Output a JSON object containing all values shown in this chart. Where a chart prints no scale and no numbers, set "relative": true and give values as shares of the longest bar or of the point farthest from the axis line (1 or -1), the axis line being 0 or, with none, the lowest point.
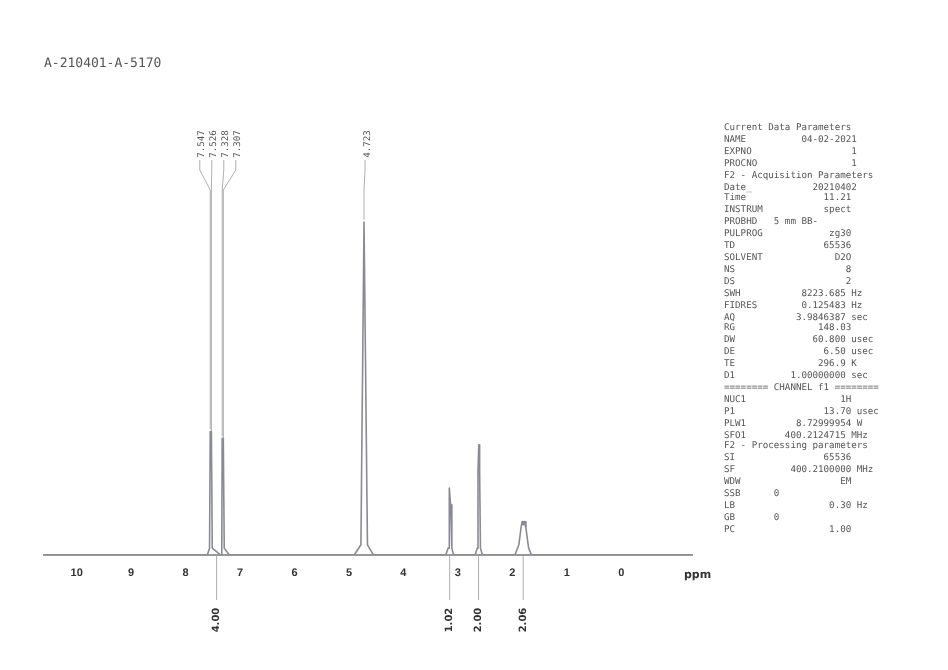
{
  "chart_data": {
    "type": "line",
    "title": "A-210401-A-5170",
    "xlabel": "ppm",
    "relative": true,
    "grid": false,
    "legend": false,
    "marker": "none",
    "xlim": [
      10.6,
      -1.3
    ],
    "xticks": [
      10,
      9,
      8,
      7,
      6,
      5,
      4,
      3,
      2,
      1,
      0
    ],
    "x": [
      10.6,
      7.6,
      7.56,
      7.547,
      7.526,
      7.51,
      7.36,
      7.335,
      7.328,
      7.307,
      7.29,
      7.2,
      4.9,
      4.78,
      4.723,
      4.66,
      4.55,
      3.22,
      3.18,
      3.165,
      3.149,
      3.133,
      3.11,
      3.08,
      2.68,
      2.645,
      2.63,
      2.615,
      2.6,
      2.585,
      2.55,
      1.95,
      1.88,
      1.84,
      1.82,
      1.8,
      1.78,
      1.75,
      1.7,
      1.65,
      -1.3
    ],
    "series": [
      {
        "color": "#8a8a96",
        "values": [
          0,
          0,
          0.02,
          0.37,
          0.36,
          0.02,
          0,
          0.02,
          0.35,
          0.34,
          0.02,
          0,
          0,
          0.03,
          1,
          0.03,
          0,
          0,
          0.02,
          0.15,
          0.2,
          0.15,
          0.02,
          0,
          0,
          0.02,
          0.25,
          0.33,
          0.25,
          0.02,
          0,
          0,
          0.03,
          0.08,
          0.1,
          0.09,
          0.1,
          0.08,
          0.02,
          0,
          0
        ]
      }
    ],
    "annotations": [
      {
        "text": "7.547",
        "x": 7.547,
        "y": 0.37
      },
      {
        "text": "7.526",
        "x": 7.526,
        "y": 0.36
      },
      {
        "text": "7.328",
        "x": 7.328,
        "y": 0.35
      },
      {
        "text": "7.307",
        "x": 7.307,
        "y": 0.34
      },
      {
        "text": "4.723",
        "x": 4.723,
        "y": 1
      },
      {
        "text": "4.00",
        "x": 7.43,
        "y": 0
      },
      {
        "text": "1.02",
        "x": 3.15,
        "y": 0
      },
      {
        "text": "2.00",
        "x": 2.62,
        "y": 0
      },
      {
        "text": "2.06",
        "x": 1.8,
        "y": 0
      },
      "Current Data Parameters",
      "NAME          04-02-2021",
      "EXPNO                  1",
      "PROCNO                 1",
      "F2 - Acquisition Parameters",
      "Date_           20210402",
      "Time              11.21",
      "INSTRUM           spect",
      "PROBHD   5 mm BB-",
      "PULPROG            zg30",
      "TD                65536",
      "SOLVENT             D2O",
      "NS                    8",
      "DS                    2",
      "SWH           8223.685 Hz",
      "FIDRES        0.125483 Hz",
      "AQ           3.9846387 sec",
      "RG               148.03",
      "DW              60.800 usec",
      "DE                6.50 usec",
      "TE               296.9 K",
      "D1          1.00000000 sec",
      "======== CHANNEL f1 ========",
      "NUC1                 1H",
      "P1                13.70 usec",
      "PLW1         8.72999954 W",
      "SFO1       400.2124715 MHz",
      "F2 - Processing parameters",
      "SI                65536",
      "SF          400.2100000 MHz",
      "WDW                  EM",
      "SSB      0",
      "LB                 0.30 Hz",
      "GB       0",
      "PC                 1.00"
    ]
  }
}
